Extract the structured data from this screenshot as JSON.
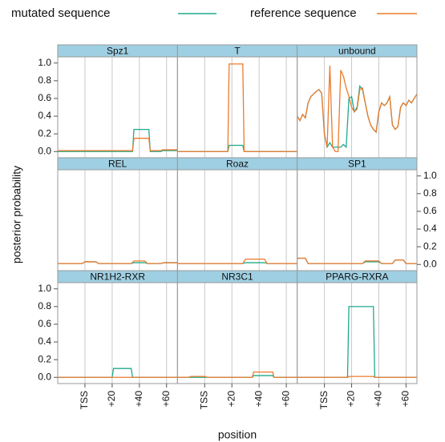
{
  "chart_data": {
    "type": "line",
    "xlabel": "position",
    "ylabel": "posterior probability",
    "series": [
      {
        "name": "mutated sequence",
        "color": "#1faa8c"
      },
      {
        "name": "reference sequence",
        "color": "#ee7a2c"
      }
    ],
    "xlim": [
      -20,
      68
    ],
    "ylim": [
      -0.07,
      1.07
    ],
    "xticks": [
      {
        "value": 0,
        "label": "TSS"
      },
      {
        "value": 20,
        "label": "+20"
      },
      {
        "value": 40,
        "label": "+40"
      },
      {
        "value": 60,
        "label": "+60"
      }
    ],
    "yticks": [
      {
        "value": 0,
        "label": "0.0"
      },
      {
        "value": 0.2,
        "label": "0.2"
      },
      {
        "value": 0.4,
        "label": "0.4"
      },
      {
        "value": 0.6,
        "label": "0.6"
      },
      {
        "value": 0.8,
        "label": "0.8"
      },
      {
        "value": 1,
        "label": "1.0"
      }
    ],
    "grid": true,
    "panels": [
      {
        "title": "Spz1",
        "x": [
          -20,
          35,
          36,
          47,
          48,
          56,
          57,
          68
        ],
        "series": [
          {
            "values": [
              0,
              0,
              0.25,
              0.25,
              0,
              0,
              0.01,
              0.01
            ]
          },
          {
            "values": [
              0.01,
              0.01,
              0.15,
              0.15,
              0.01,
              0.01,
              0.02,
              0.02
            ]
          }
        ]
      },
      {
        "title": "T",
        "x": [
          -20,
          17,
          18,
          28,
          29,
          68
        ],
        "series": [
          {
            "values": [
              0,
              0,
              0.07,
              0.07,
              0,
              0
            ]
          },
          {
            "values": [
              0,
              0,
              0.99,
              0.99,
              0,
              0
            ]
          }
        ]
      },
      {
        "title": "unbound",
        "x": [
          -20,
          -18,
          -16,
          -14,
          -12,
          -10,
          -8,
          -6,
          -4,
          -2,
          0,
          2,
          4,
          6,
          8,
          10,
          12,
          14,
          16,
          18,
          20,
          22,
          24,
          26,
          28,
          30,
          32,
          34,
          36,
          38,
          40,
          42,
          44,
          46,
          48,
          50,
          52,
          54,
          56,
          58,
          60,
          62,
          64,
          66,
          68
        ],
        "series": [
          {
            "values": [
              0.4,
              0.35,
              0.42,
              0.38,
              0.55,
              0.62,
              0.65,
              0.68,
              0.7,
              0.66,
              0.2,
              0.05,
              0.1,
              0.05,
              0.05,
              0.05,
              0.05,
              0.08,
              0.05,
              0.6,
              0.62,
              0.45,
              0.5,
              0.74,
              0.7,
              0.55,
              0.4,
              0.3,
              0.25,
              0.22,
              0.45,
              0.55,
              0.52,
              0.55,
              0.62,
              0.3,
              0.25,
              0.28,
              0.5,
              0.55,
              0.52,
              0.58,
              0.55,
              0.6,
              0.65
            ]
          },
          {
            "values": [
              0.4,
              0.35,
              0.42,
              0.38,
              0.55,
              0.62,
              0.65,
              0.68,
              0.7,
              0.66,
              0.2,
              0.05,
              0.97,
              0.05,
              0.0,
              0.0,
              0.92,
              0.85,
              0.72,
              0.62,
              0.5,
              0.45,
              0.48,
              0.7,
              0.72,
              0.55,
              0.4,
              0.3,
              0.25,
              0.22,
              0.45,
              0.55,
              0.52,
              0.55,
              0.62,
              0.3,
              0.25,
              0.28,
              0.5,
              0.55,
              0.52,
              0.58,
              0.55,
              0.6,
              0.65
            ]
          }
        ]
      },
      {
        "title": "REL",
        "x": [
          -20,
          -2,
          0,
          8,
          10,
          34,
          36,
          44,
          46,
          56,
          58,
          68
        ],
        "series": [
          {
            "values": [
              0.01,
              0.01,
              0.03,
              0.03,
              0.01,
              0.01,
              0.02,
              0.02,
              0.01,
              0.01,
              0.02,
              0.02
            ]
          },
          {
            "values": [
              0.01,
              0.01,
              0.03,
              0.03,
              0.01,
              0.01,
              0.04,
              0.04,
              0.01,
              0.01,
              0.02,
              0.02
            ]
          }
        ]
      },
      {
        "title": "Roaz",
        "x": [
          -20,
          28,
          30,
          44,
          46,
          68
        ],
        "series": [
          {
            "values": [
              0.01,
              0.01,
              0.02,
              0.02,
              0.01,
              0.01
            ]
          },
          {
            "values": [
              0.01,
              0.01,
              0.06,
              0.06,
              0.01,
              0.01
            ]
          }
        ]
      },
      {
        "title": "SP1",
        "x": [
          -20,
          -14,
          -12,
          28,
          30,
          40,
          42,
          50,
          52,
          58,
          60,
          68
        ],
        "series": [
          {
            "values": [
              0.07,
              0.07,
              0.01,
              0.01,
              0.03,
              0.03,
              0.01,
              0.01,
              0.05,
              0.05,
              0.01,
              0.01
            ]
          },
          {
            "values": [
              0.07,
              0.07,
              0.01,
              0.01,
              0.04,
              0.04,
              0.01,
              0.01,
              0.05,
              0.05,
              0.01,
              0.01
            ]
          }
        ]
      },
      {
        "title": "NR1H2-RXR",
        "x": [
          -20,
          20,
          21,
          34,
          35,
          68
        ],
        "series": [
          {
            "values": [
              0,
              0,
              0.1,
              0.1,
              0,
              0
            ]
          },
          {
            "values": [
              0,
              0,
              0,
              0,
              0,
              0
            ]
          }
        ]
      },
      {
        "title": "NR3C1",
        "x": [
          -20,
          -12,
          -10,
          0,
          2,
          35,
          36,
          50,
          51,
          68
        ],
        "series": [
          {
            "values": [
              0,
              0,
              0,
              0,
              0,
              0,
              0.02,
              0.02,
              0,
              0
            ]
          },
          {
            "values": [
              0,
              0,
              0.01,
              0.01,
              0,
              0,
              0.06,
              0.06,
              0,
              0
            ]
          }
        ]
      },
      {
        "title": "PPARG-RXRA",
        "x": [
          -20,
          17,
          18,
          36,
          37,
          68
        ],
        "series": [
          {
            "values": [
              0,
              0,
              0.8,
              0.8,
              0,
              0
            ]
          },
          {
            "values": [
              0,
              0,
              0.01,
              0.01,
              0,
              0
            ]
          }
        ]
      }
    ]
  }
}
